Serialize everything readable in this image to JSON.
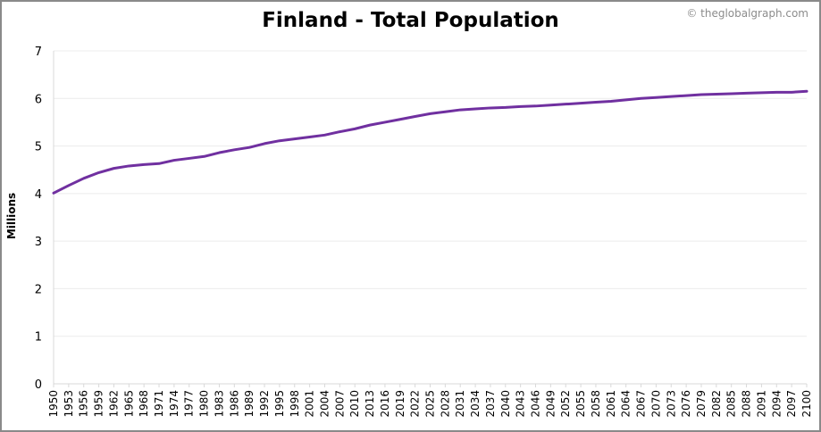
{
  "header": {
    "title": "Finland - Total Population",
    "credit": "© theglobalgraph.com"
  },
  "chart_data": {
    "type": "line",
    "title": "Finland - Total Population",
    "xlabel": "",
    "ylabel": "Millions",
    "ylim": [
      0,
      7
    ],
    "xlim": [
      1950,
      2100
    ],
    "yticks": [
      0,
      1,
      2,
      3,
      4,
      5,
      6,
      7
    ],
    "xticks": [
      1950,
      1953,
      1956,
      1959,
      1962,
      1965,
      1968,
      1971,
      1974,
      1977,
      1980,
      1983,
      1986,
      1989,
      1992,
      1995,
      1998,
      2001,
      2004,
      2007,
      2010,
      2013,
      2016,
      2019,
      2022,
      2025,
      2028,
      2031,
      2034,
      2037,
      2040,
      2043,
      2046,
      2049,
      2052,
      2055,
      2058,
      2061,
      2064,
      2067,
      2070,
      2073,
      2076,
      2079,
      2082,
      2085,
      2088,
      2091,
      2094,
      2097,
      2100
    ],
    "grid": "horizontal",
    "line_color": "#7030a0",
    "series": [
      {
        "x": [
          1950,
          1953,
          1956,
          1959,
          1962,
          1965,
          1968,
          1971,
          1974,
          1977,
          1980,
          1983,
          1986,
          1989,
          1992,
          1995,
          1998,
          2001,
          2004,
          2007,
          2010,
          2013,
          2016,
          2019,
          2022,
          2025,
          2028,
          2031,
          2034,
          2037,
          2040,
          2043,
          2046,
          2049,
          2052,
          2055,
          2058,
          2061,
          2064,
          2067,
          2070,
          2073,
          2076,
          2079,
          2082,
          2085,
          2088,
          2091,
          2094,
          2097,
          2100
        ],
        "values": [
          4.01,
          4.17,
          4.32,
          4.44,
          4.53,
          4.58,
          4.61,
          4.63,
          4.7,
          4.74,
          4.78,
          4.86,
          4.92,
          4.97,
          5.05,
          5.11,
          5.15,
          5.19,
          5.23,
          5.3,
          5.36,
          5.44,
          5.5,
          5.56,
          5.62,
          5.68,
          5.72,
          5.76,
          5.78,
          5.8,
          5.81,
          5.83,
          5.84,
          5.86,
          5.88,
          5.9,
          5.92,
          5.94,
          5.97,
          6.0,
          6.02,
          6.04,
          6.06,
          6.08,
          6.09,
          6.1,
          6.11,
          6.12,
          6.13,
          6.13,
          6.15
        ]
      }
    ]
  }
}
